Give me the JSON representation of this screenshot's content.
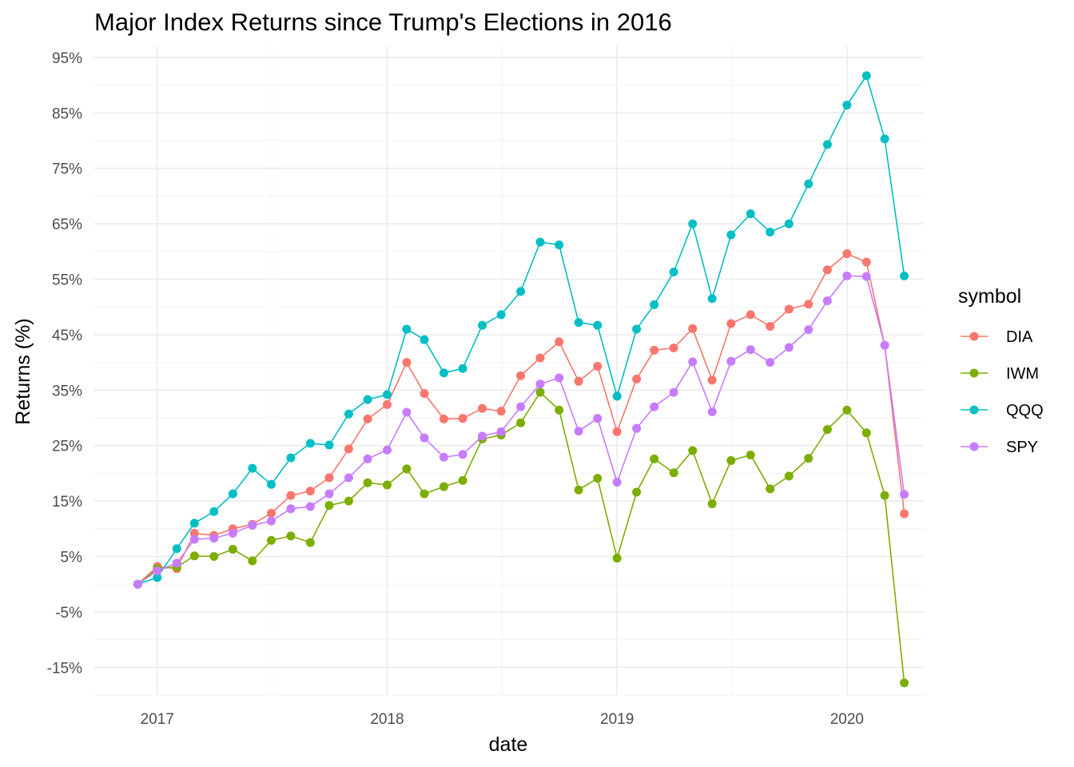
{
  "chart_data": {
    "type": "line",
    "title": "Major Index Returns since Trump's Elections in 2016",
    "xlabel": "date",
    "ylabel": "Returns (%)",
    "x_ticks": [
      "2017",
      "2018",
      "2019",
      "2020"
    ],
    "y_ticks": [
      "95%",
      "85%",
      "75%",
      "65%",
      "55%",
      "45%",
      "35%",
      "25%",
      "15%",
      "5%",
      "-5%",
      "-15%"
    ],
    "ylim": [
      -20,
      97
    ],
    "xlim": [
      "2016-09-23",
      "2020-05-02"
    ],
    "grid": true,
    "legend": {
      "title": "symbol",
      "position": "right"
    },
    "x": [
      "2016-12-01",
      "2017-01-01",
      "2017-02-01",
      "2017-03-01",
      "2017-04-01",
      "2017-05-01",
      "2017-06-01",
      "2017-07-01",
      "2017-08-01",
      "2017-09-01",
      "2017-10-01",
      "2017-11-01",
      "2017-12-01",
      "2018-01-01",
      "2018-02-01",
      "2018-03-01",
      "2018-04-01",
      "2018-05-01",
      "2018-06-01",
      "2018-07-01",
      "2018-08-01",
      "2018-09-01",
      "2018-10-01",
      "2018-11-01",
      "2018-12-01",
      "2019-01-01",
      "2019-02-01",
      "2019-03-01",
      "2019-04-01",
      "2019-05-01",
      "2019-06-01",
      "2019-07-01",
      "2019-08-01",
      "2019-09-01",
      "2019-10-01",
      "2019-11-01",
      "2019-12-01",
      "2020-01-01",
      "2020-02-01",
      "2020-03-01",
      "2020-04-01"
    ],
    "series": [
      {
        "name": "DIA",
        "color": "#F8766D",
        "values": [
          0,
          3.2,
          2.8,
          9.2,
          8.8,
          10.0,
          10.8,
          12.8,
          16.0,
          16.8,
          19.2,
          24.4,
          29.8,
          32.4,
          40.0,
          34.4,
          29.8,
          29.9,
          31.7,
          31.2,
          37.6,
          40.8,
          43.7,
          36.6,
          39.3,
          27.5,
          37.0,
          42.2,
          42.6,
          46.1,
          36.8,
          47.0,
          48.6,
          46.5,
          49.6,
          50.5,
          56.7,
          59.6,
          58.1,
          43.1,
          12.7
        ]
      },
      {
        "name": "IWM",
        "color": "#7CAE00",
        "values": [
          0,
          2.8,
          3.1,
          5.1,
          5.0,
          6.3,
          4.2,
          7.9,
          8.7,
          7.5,
          14.2,
          15.0,
          18.3,
          17.9,
          20.8,
          16.3,
          17.6,
          18.7,
          26.2,
          26.9,
          29.1,
          34.6,
          31.4,
          17.0,
          19.1,
          4.7,
          16.6,
          22.6,
          20.1,
          24.1,
          14.5,
          22.3,
          23.3,
          17.2,
          19.5,
          22.7,
          27.9,
          31.4,
          27.3,
          16.0,
          -17.8
        ]
      },
      {
        "name": "QQQ",
        "color": "#00BFC4",
        "values": [
          0,
          1.2,
          6.4,
          11.0,
          13.1,
          16.3,
          20.9,
          18.0,
          22.8,
          25.4,
          25.1,
          30.7,
          33.3,
          34.2,
          46.0,
          44.1,
          38.1,
          38.9,
          46.7,
          48.6,
          52.8,
          61.7,
          61.2,
          47.2,
          46.7,
          33.9,
          46.0,
          50.4,
          56.3,
          65.0,
          51.5,
          63.0,
          66.8,
          63.5,
          65.0,
          72.2,
          79.3,
          86.4,
          91.7,
          80.3,
          55.6
        ]
      },
      {
        "name": "SPY",
        "color": "#C77CFF",
        "values": [
          0,
          2.4,
          3.8,
          8.1,
          8.3,
          9.2,
          10.6,
          11.4,
          13.6,
          14.0,
          16.3,
          19.2,
          22.6,
          24.2,
          31.0,
          26.4,
          22.9,
          23.4,
          26.7,
          27.5,
          32.0,
          36.1,
          37.2,
          27.6,
          29.9,
          18.4,
          28.1,
          32.0,
          34.6,
          40.1,
          31.1,
          40.2,
          42.3,
          40.0,
          42.7,
          45.9,
          51.1,
          55.6,
          55.5,
          43.1,
          16.2
        ]
      }
    ]
  }
}
